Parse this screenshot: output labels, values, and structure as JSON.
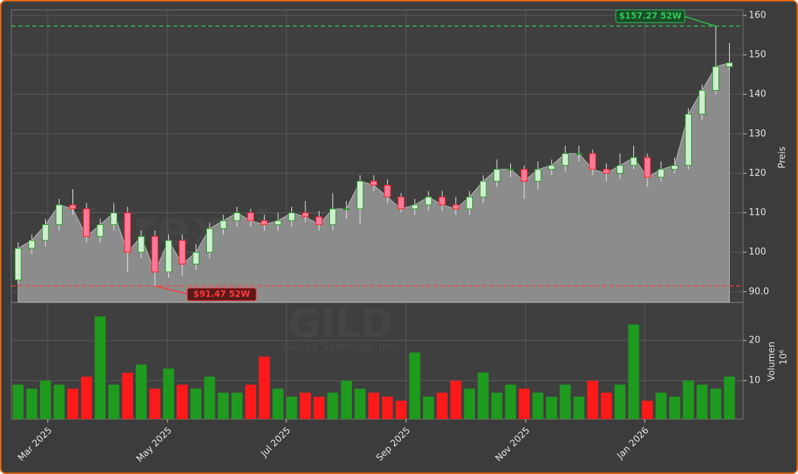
{
  "chart_data": {
    "type": "candlestick",
    "watermark": "forexsignale.trade",
    "symbol": "GILD",
    "company": "Gilead Sciences, Inc.",
    "ylabel": "Preis",
    "volume_label": "Volumen",
    "volume_unit": "10⁶",
    "xlim": [
      -0.5,
      53
    ],
    "xticks": [
      {
        "value": 2.17,
        "label": "Mar 2025"
      },
      {
        "value": 10.92,
        "label": "May 2025"
      },
      {
        "value": 19.61,
        "label": "Jul 2025"
      },
      {
        "value": 28.36,
        "label": "Sep 2025"
      },
      {
        "value": 37.1,
        "label": "Nov 2025"
      },
      {
        "value": 45.8,
        "label": "Jan 2026"
      }
    ],
    "ylim": [
      87.3,
      161.4
    ],
    "yticks": [
      {
        "value": 90,
        "label": "90.0"
      },
      100,
      110,
      120,
      130,
      140,
      150,
      160
    ],
    "volume_ylim": [
      0.4,
      29.5
    ],
    "volume_yticks": [
      10,
      20
    ],
    "grid": true,
    "up_color": "#1e9a1e",
    "down_color": "#ff1a1a",
    "area_color": "#8c8c8c",
    "open": [
      93,
      101,
      103,
      107,
      112,
      111,
      104,
      107,
      110,
      100,
      104,
      95,
      103,
      97,
      100,
      106,
      108,
      110,
      108,
      107,
      108,
      110,
      109,
      107,
      111,
      111,
      118,
      117,
      114,
      111,
      112,
      114,
      112,
      111,
      114,
      118,
      121,
      121,
      118,
      121,
      122,
      125,
      125,
      121,
      120,
      122,
      124,
      119,
      121,
      122,
      135,
      141,
      147
    ],
    "high": [
      102.5,
      104.5,
      108.5,
      113.5,
      116,
      112.5,
      108.5,
      112.5,
      111.5,
      105.5,
      105.5,
      104.5,
      104.5,
      102,
      107.5,
      109.5,
      111.5,
      111,
      109.5,
      110,
      111.5,
      113,
      110.5,
      115,
      113,
      119.5,
      119.5,
      118.5,
      115,
      113.5,
      115.5,
      115.5,
      114,
      115.5,
      119.5,
      123.5,
      122.5,
      122,
      123,
      123.5,
      127,
      127,
      126,
      122.5,
      125,
      127,
      125,
      123,
      124,
      136.5,
      142.5,
      157.27,
      153
    ],
    "low": [
      92,
      99.5,
      101.5,
      105.5,
      109.5,
      102.5,
      102.5,
      105.5,
      95,
      98.5,
      91.47,
      93.5,
      94,
      95.5,
      98.5,
      104.5,
      106.5,
      106.5,
      105.5,
      105.5,
      106.5,
      107.5,
      105.5,
      105.5,
      108.5,
      107,
      115.5,
      112.5,
      110,
      109.5,
      110.5,
      110.5,
      109.5,
      109.5,
      112.5,
      116.5,
      119,
      113.5,
      116,
      119.5,
      120.5,
      123,
      119.5,
      118,
      118.5,
      121,
      116.5,
      118,
      120,
      121,
      133.5,
      140,
      146
    ],
    "close": [
      101,
      103,
      107,
      112,
      111,
      104,
      107,
      110,
      100,
      104,
      95,
      103,
      97,
      100,
      106,
      108,
      110,
      108,
      107,
      108,
      110,
      109,
      107,
      111,
      111,
      118,
      117,
      114,
      111,
      112,
      114,
      112,
      111,
      114,
      118,
      121,
      121,
      118,
      121,
      122,
      125,
      125,
      121,
      120,
      122,
      124,
      119,
      121,
      122,
      135,
      141,
      147,
      148
    ],
    "volume": [
      9,
      8,
      10,
      9,
      8,
      11,
      26,
      9,
      12,
      14,
      8,
      13,
      9,
      8,
      11,
      7,
      7,
      9,
      16,
      8,
      6,
      7,
      6,
      7,
      10,
      8,
      7,
      6,
      5,
      17,
      6,
      7,
      10,
      8,
      12,
      7,
      9,
      8,
      7,
      6,
      9,
      6,
      10,
      7,
      9,
      24,
      5,
      7,
      6,
      10,
      9,
      8,
      11
    ],
    "annotations": [
      {
        "text": "$157.27 52W",
        "value": 157.27,
        "color": "#2ecc55",
        "at": 51
      },
      {
        "text": "$91.47 52W",
        "value": 91.47,
        "color": "#ff3b3b",
        "at": 10
      }
    ]
  }
}
